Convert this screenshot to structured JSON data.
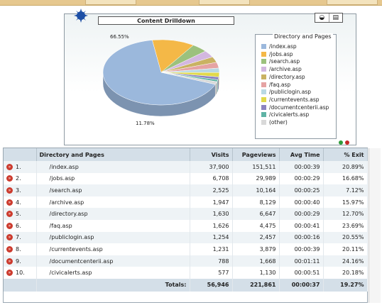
{
  "widget": {
    "title": "Content Drilldown",
    "tools": [
      "◒",
      "▤"
    ]
  },
  "chart_data": {
    "type": "pie",
    "title": "Content Drilldown",
    "legend_title": "Directory and Pages",
    "legend_position": "right",
    "slices": [
      {
        "label": "/index.asp",
        "value": 66.55,
        "color": "#9bb8dc"
      },
      {
        "label": "/jobs.asp",
        "value": 11.78,
        "color": "#f4b847"
      },
      {
        "label": "/search.asp",
        "value": 4.43,
        "color": "#9cc17d"
      },
      {
        "label": "/archive.asp",
        "value": 3.42,
        "color": "#d3b7e0"
      },
      {
        "label": "/directory.asp",
        "value": 2.86,
        "color": "#c9b262"
      },
      {
        "label": "/faq.asp",
        "value": 2.86,
        "color": "#e5a3a3"
      },
      {
        "label": "/publiclogin.asp",
        "value": 2.2,
        "color": "#b9d9e3"
      },
      {
        "label": "/currentevents.asp",
        "value": 2.16,
        "color": "#e1d94a"
      },
      {
        "label": "/documentcenterii.asp",
        "value": 1.38,
        "color": "#8c84bf"
      },
      {
        "label": "/civicalerts.asp",
        "value": 1.01,
        "color": "#5fb3a5"
      },
      {
        "label": "(other)",
        "value": 1.35,
        "color": "#d9d9d9"
      }
    ],
    "labels_shown": [
      "66.55%",
      "11.78%"
    ]
  },
  "table": {
    "columns": [
      "",
      "Directory and Pages",
      "Visits",
      "Pageviews",
      "Avg Time",
      "% Exit"
    ],
    "rows": [
      {
        "rank": "1.",
        "page": "/index.asp",
        "visits": "37,900",
        "pageviews": "151,511",
        "avg": "00:00:39",
        "exit": "20.89%"
      },
      {
        "rank": "2.",
        "page": "/jobs.asp",
        "visits": "6,708",
        "pageviews": "29,989",
        "avg": "00:00:29",
        "exit": "16.68%"
      },
      {
        "rank": "3.",
        "page": "/search.asp",
        "visits": "2,525",
        "pageviews": "10,164",
        "avg": "00:00:25",
        "exit": "7.12%"
      },
      {
        "rank": "4.",
        "page": "/archive.asp",
        "visits": "1,947",
        "pageviews": "8,129",
        "avg": "00:00:40",
        "exit": "15.97%"
      },
      {
        "rank": "5.",
        "page": "/directory.asp",
        "visits": "1,630",
        "pageviews": "6,647",
        "avg": "00:00:29",
        "exit": "12.70%"
      },
      {
        "rank": "6.",
        "page": "/faq.asp",
        "visits": "1,626",
        "pageviews": "4,475",
        "avg": "00:00:41",
        "exit": "23.69%"
      },
      {
        "rank": "7.",
        "page": "/publiclogin.asp",
        "visits": "1,254",
        "pageviews": "2,457",
        "avg": "00:00:16",
        "exit": "20.55%"
      },
      {
        "rank": "8.",
        "page": "/currentevents.asp",
        "visits": "1,231",
        "pageviews": "3,879",
        "avg": "00:00:39",
        "exit": "20.11%"
      },
      {
        "rank": "9.",
        "page": "/documentcenterii.asp",
        "visits": "788",
        "pageviews": "1,668",
        "avg": "00:01:11",
        "exit": "24.16%"
      },
      {
        "rank": "10.",
        "page": "/civicalerts.asp",
        "visits": "577",
        "pageviews": "1,130",
        "avg": "00:00:51",
        "exit": "20.18%"
      }
    ],
    "totals": {
      "label": "Totals:",
      "visits": "56,946",
      "pageviews": "221,861",
      "avg": "00:00:37",
      "exit": "19.27%"
    }
  },
  "colors": {
    "header_bg": "#d4dfe8",
    "row_alt": "#eef3f6",
    "rank_icon": "#cc3b2e",
    "status_green": "#2e9b3a",
    "status_red": "#c62828"
  }
}
